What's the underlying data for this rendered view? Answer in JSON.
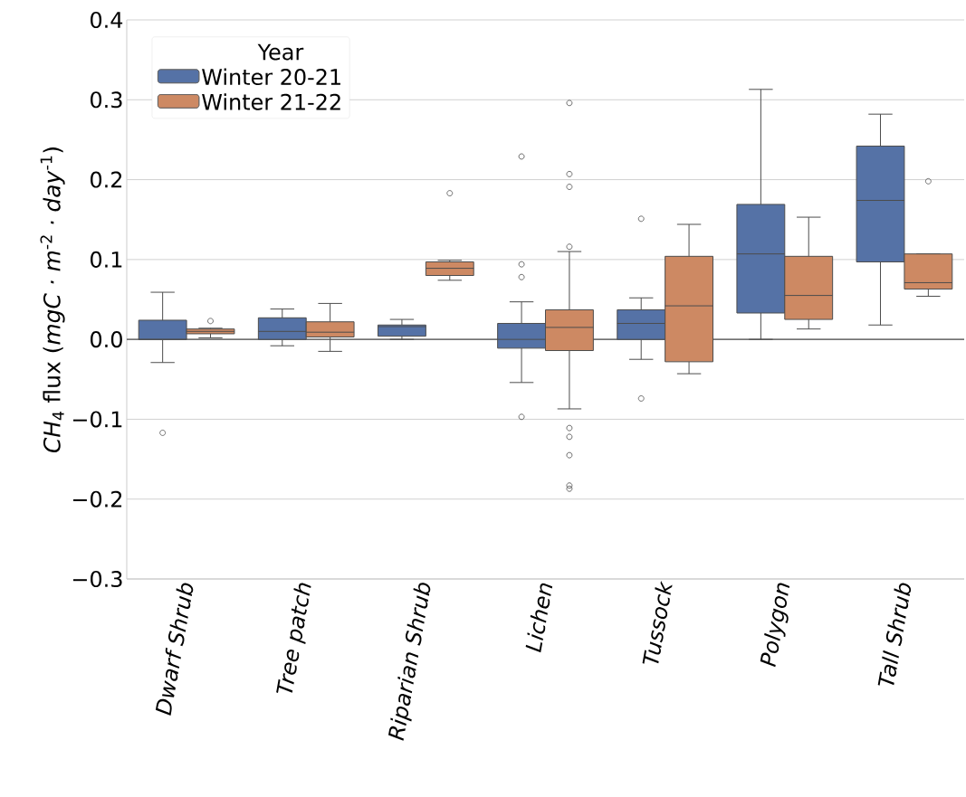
{
  "chart_data": {
    "type": "box",
    "categories": [
      "Dwarf Shrub",
      "Tree patch",
      "Riparian Shrub",
      "Lichen",
      "Tussock",
      "Polygon",
      "Tall Shrub"
    ],
    "ylabel": "*CH*$_{4}$ flux (*mgC · m*$^{-2}$ *· day*$^{-1}$)",
    "legend_title": "Year",
    "ylim": [
      -0.3,
      0.4
    ],
    "yticks": [
      {
        "value": -0.3,
        "label": "−0.3"
      },
      {
        "value": -0.2,
        "label": "−0.2"
      },
      {
        "value": -0.1,
        "label": "−0.1"
      },
      {
        "value": 0,
        "label": "0.0"
      },
      {
        "value": 0.1,
        "label": "0.1"
      },
      {
        "value": 0.2,
        "label": "0.2"
      },
      {
        "value": 0.3,
        "label": "0.3"
      },
      {
        "value": 0.4,
        "label": "0.4"
      }
    ],
    "grid": "y",
    "legend": "top left",
    "ref_lines": [
      {
        "axis": "y",
        "value": 0,
        "color": "#4d4d4d"
      }
    ],
    "series": [
      {
        "name": "Winter 20-21",
        "color": "#5572a6",
        "boxes": [
          {
            "low": -0.029,
            "q1": 0.0,
            "median": 0.0,
            "q3": 0.024,
            "high": 0.059,
            "outliers": [
              -0.117
            ]
          },
          {
            "low": -0.008,
            "q1": 0.0,
            "median": 0.01,
            "q3": 0.027,
            "high": 0.038
          },
          {
            "low": 0.0,
            "q1": 0.004,
            "median": 0.016,
            "q3": 0.018,
            "high": 0.025
          },
          {
            "low": -0.054,
            "q1": -0.011,
            "median": 0.0,
            "q3": 0.02,
            "high": 0.047,
            "outliers": [
              0.229,
              0.094,
              0.078,
              -0.097
            ]
          },
          {
            "low": -0.025,
            "q1": 0.0,
            "median": 0.02,
            "q3": 0.037,
            "high": 0.052,
            "outliers": [
              0.151,
              -0.074
            ]
          },
          {
            "low": 0.0,
            "q1": 0.033,
            "median": 0.107,
            "q3": 0.169,
            "high": 0.313
          },
          {
            "low": 0.018,
            "q1": 0.097,
            "median": 0.174,
            "q3": 0.242,
            "high": 0.282
          }
        ]
      },
      {
        "name": "Winter 21-22",
        "color": "#cd8963",
        "boxes": [
          {
            "low": 0.002,
            "q1": 0.007,
            "median": 0.01,
            "q3": 0.013,
            "high": 0.014,
            "outliers": [
              0.023
            ]
          },
          {
            "low": -0.015,
            "q1": 0.003,
            "median": 0.009,
            "q3": 0.022,
            "high": 0.045
          },
          {
            "low": 0.074,
            "q1": 0.08,
            "median": 0.089,
            "q3": 0.097,
            "high": 0.099,
            "outliers": [
              0.183
            ]
          },
          {
            "low": -0.087,
            "q1": -0.014,
            "median": 0.015,
            "q3": 0.037,
            "high": 0.11,
            "outliers": [
              0.296,
              0.207,
              0.191,
              0.116,
              -0.111,
              -0.122,
              -0.145,
              -0.183,
              -0.187
            ]
          },
          {
            "low": -0.043,
            "q1": -0.028,
            "median": 0.042,
            "q3": 0.104,
            "high": 0.144
          },
          {
            "low": 0.013,
            "q1": 0.025,
            "median": 0.055,
            "q3": 0.104,
            "high": 0.153
          },
          {
            "low": 0.054,
            "q1": 0.063,
            "median": 0.071,
            "q3": 0.107,
            "high": 0.107,
            "outliers": [
              0.198
            ]
          }
        ]
      }
    ]
  }
}
